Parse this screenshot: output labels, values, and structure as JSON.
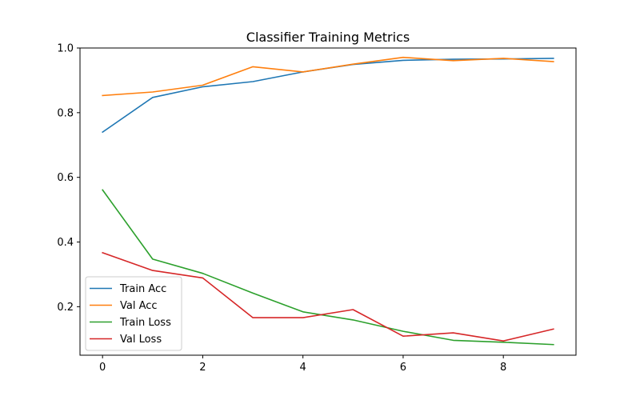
{
  "chart_data": {
    "type": "line",
    "title": "Classifier Training Metrics",
    "xlabel": "",
    "ylabel": "",
    "x": [
      0,
      1,
      2,
      3,
      4,
      5,
      6,
      7,
      8,
      9
    ],
    "xlim": [
      -0.45,
      9.45
    ],
    "ylim": [
      0.05,
      1.0
    ],
    "xticks": [
      0,
      2,
      4,
      6,
      8
    ],
    "yticks": [
      0.2,
      0.4,
      0.6,
      0.8,
      1.0
    ],
    "xtick_labels": [
      "0",
      "2",
      "4",
      "6",
      "8"
    ],
    "ytick_labels": [
      "0.2",
      "0.4",
      "0.6",
      "0.8",
      "1.0"
    ],
    "grid": false,
    "legend_position": "bottom-left",
    "series": [
      {
        "name": "Train Acc",
        "color": "#1f77b4",
        "values": [
          0.74,
          0.847,
          0.88,
          0.896,
          0.926,
          0.949,
          0.962,
          0.965,
          0.966,
          0.968
        ]
      },
      {
        "name": "Val Acc",
        "color": "#ff7f0e",
        "values": [
          0.853,
          0.864,
          0.885,
          0.942,
          0.926,
          0.95,
          0.971,
          0.961,
          0.968,
          0.958
        ]
      },
      {
        "name": "Train Loss",
        "color": "#2ca02c",
        "values": [
          0.561,
          0.347,
          0.303,
          0.242,
          0.184,
          0.159,
          0.124,
          0.096,
          0.09,
          0.083
        ]
      },
      {
        "name": "Val Loss",
        "color": "#d62728",
        "values": [
          0.367,
          0.312,
          0.289,
          0.166,
          0.166,
          0.191,
          0.109,
          0.119,
          0.094,
          0.131
        ]
      }
    ]
  }
}
